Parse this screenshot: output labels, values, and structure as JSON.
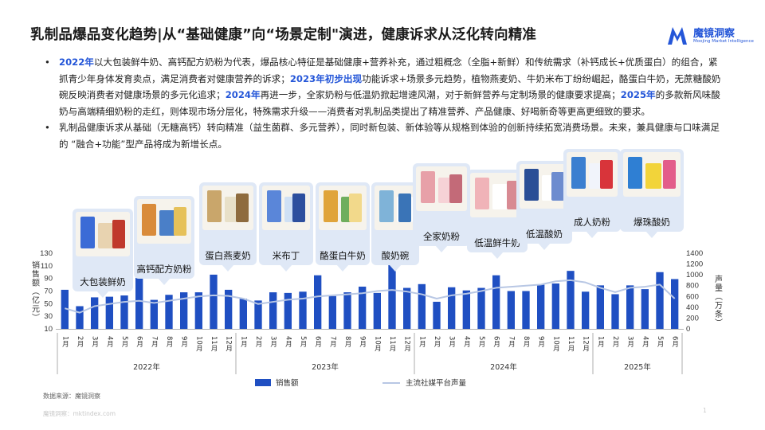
{
  "title": "乳制品爆品变化趋势|从“基础健康”向“场景定制\"演进，健康诉求从泛化转向精准",
  "logo": {
    "name_cn": "魔镜洞察",
    "name_en": "Moojing Market Intelligence"
  },
  "bullets": [
    [
      {
        "t": "2022年",
        "hl": true
      },
      {
        "t": "以大包装鲜牛奶、高钙配方奶粉为代表，爆品核心特征是基础健康+营养补充，通过粗概念（全脂+新鲜）和传统需求（补钙成长+优质蛋白）的组合，紧抓青少年身体发育卖点，满足消费者对健康营养的诉求；",
        "hl": false
      },
      {
        "t": "2023年初步出现",
        "hl": true
      },
      {
        "t": "功能诉求+场景多元趋势，植物燕麦奶、牛奶米布丁纷纷崛起，酪蛋白牛奶，无蔗糖酸奶碗反映消费者对健康场景的多元化追求；",
        "hl": false
      },
      {
        "t": "2024年",
        "hl": true
      },
      {
        "t": "再进一步，全家奶粉与低温奶掀起增速风潮，对于新鲜营养与定制场景的健康要求提高；",
        "hl": false
      },
      {
        "t": "2025年",
        "hl": true
      },
      {
        "t": "的多款新风味酸奶与高端精细奶粉的走红，则体现市场分层化，特殊需求升级——消费者对乳制品类提出了精准营养、产品健康、好喝新奇等更高更细致的要求。",
        "hl": false
      }
    ],
    [
      {
        "t": "乳制品健康诉求从基础（无糖高钙）转向精准（益生菌群、多元营养），同时新包装、新体验等从规格到体验的创新持续拓宽消费场景。未来，兼具健康与口味满足的 “融合+功能”型产品将成为新增长点。",
        "hl": false
      }
    ]
  ],
  "annotations": [
    {
      "label": "大包装鲜奶"
    },
    {
      "label": "高钙配方奶粉"
    },
    {
      "label": "蛋白燕麦奶"
    },
    {
      "label": "米布丁"
    },
    {
      "label": "酪蛋白牛奶"
    },
    {
      "label": "酸奶碗"
    },
    {
      "label": "全家奶粉"
    },
    {
      "label": "低温鲜牛奶"
    },
    {
      "label": "低温酸奶"
    },
    {
      "label": "成人奶粉"
    },
    {
      "label": "爆珠酸奶"
    }
  ],
  "chart_data": {
    "type": "bar",
    "x_month_labels": [
      "1月",
      "2月",
      "3月",
      "4月",
      "5月",
      "6月",
      "7月",
      "8月",
      "9月",
      "10月",
      "11月",
      "12月",
      "1月",
      "2月",
      "3月",
      "4月",
      "5月",
      "6月",
      "7月",
      "8月",
      "9月",
      "10月",
      "11月",
      "12月",
      "1月",
      "2月",
      "3月",
      "4月",
      "5月",
      "6月",
      "7月",
      "8月",
      "9月",
      "10月",
      "11月",
      "12月",
      "1月",
      "2月",
      "3月",
      "4月",
      "5月",
      "6月"
    ],
    "year_groups": [
      {
        "label": "2022年",
        "months": 12
      },
      {
        "label": "2023年",
        "months": 12
      },
      {
        "label": "2024年",
        "months": 12
      },
      {
        "label": "2025年",
        "months": 6
      }
    ],
    "series": [
      {
        "name": "销售额",
        "kind": "bar",
        "axis": "left",
        "color": "#1f4fc2",
        "values": [
          72,
          46,
          60,
          61,
          63,
          91,
          56,
          64,
          68,
          68,
          96,
          72,
          58,
          55,
          68,
          67,
          69,
          95,
          62,
          68,
          77,
          67,
          118,
          75,
          81,
          53,
          76,
          71,
          75,
          95,
          70,
          70,
          80,
          82,
          102,
          69,
          79,
          65,
          79,
          73,
          100,
          89
        ]
      },
      {
        "name": "主流社媒平台声量",
        "kind": "line",
        "axis": "right",
        "color": "#b8c7e4",
        "values": [
          380,
          300,
          420,
          460,
          500,
          520,
          480,
          520,
          560,
          600,
          620,
          610,
          560,
          460,
          500,
          540,
          560,
          600,
          620,
          640,
          660,
          700,
          720,
          690,
          640,
          560,
          620,
          650,
          700,
          760,
          780,
          800,
          820,
          880,
          900,
          860,
          760,
          680,
          760,
          780,
          820,
          560
        ]
      }
    ],
    "y_left": {
      "label": "销售额（亿元）",
      "min": 10,
      "max": 130,
      "ticks": [
        10,
        30,
        50,
        70,
        90,
        110,
        130
      ]
    },
    "y_right": {
      "label": "声量（万条）",
      "min": 0,
      "max": 1400,
      "ticks": [
        0,
        200,
        400,
        600,
        800,
        1000,
        1200,
        1400
      ]
    },
    "grid": false,
    "legend_position": "bottom-center"
  },
  "source": "数据来源：魔镜洞察",
  "footer": "魔镜洞察：mktindex.com",
  "page_number": "1",
  "colors": {
    "accent": "#2456d8",
    "bar": "#1f4fc2",
    "line": "#b8c7e4",
    "bubble": "#dfe8f6"
  }
}
